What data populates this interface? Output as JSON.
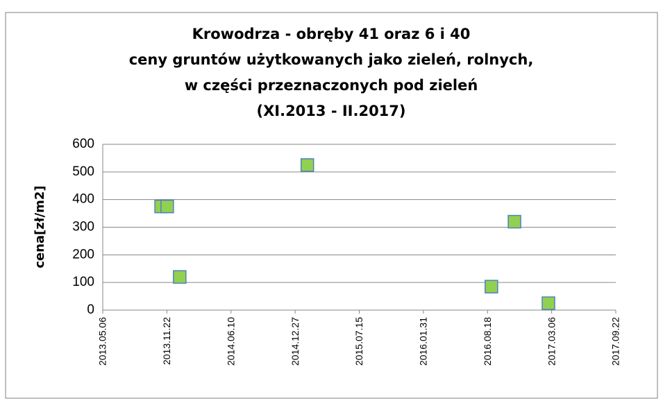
{
  "chart_data": {
    "type": "scatter",
    "title": [
      "Krowodrza - obręby 41 oraz 6 i 40",
      "ceny gruntów użytkowanych jako zieleń, rolnych,",
      "w części przeznaczonych pod zieleń",
      "(XI.2013 - II.2017)"
    ],
    "y_label": "cena[zł/m2]",
    "x": [
      "2013.11.04",
      "2013.11.23",
      "2014.01.01",
      "2015.02.03",
      "2016.08.30",
      "2016.11.10",
      "2017.02.24"
    ],
    "values": [
      375,
      375,
      120,
      525,
      85,
      320,
      25
    ],
    "color": "#92d050",
    "edge_color": "#4f81bd",
    "xlim": [
      "2013.05.06",
      "2017.09.22"
    ],
    "xticks": [
      "2013.05.06",
      "2013.11.22",
      "2014.06.10",
      "2014.12.27",
      "2015.07.15",
      "2016.01.31",
      "2016.08.18",
      "2017.03.06",
      "2017.09.22"
    ],
    "ylim": [
      0,
      600
    ],
    "yticks": [
      0,
      100,
      200,
      300,
      400,
      500,
      600
    ],
    "grid": true
  }
}
